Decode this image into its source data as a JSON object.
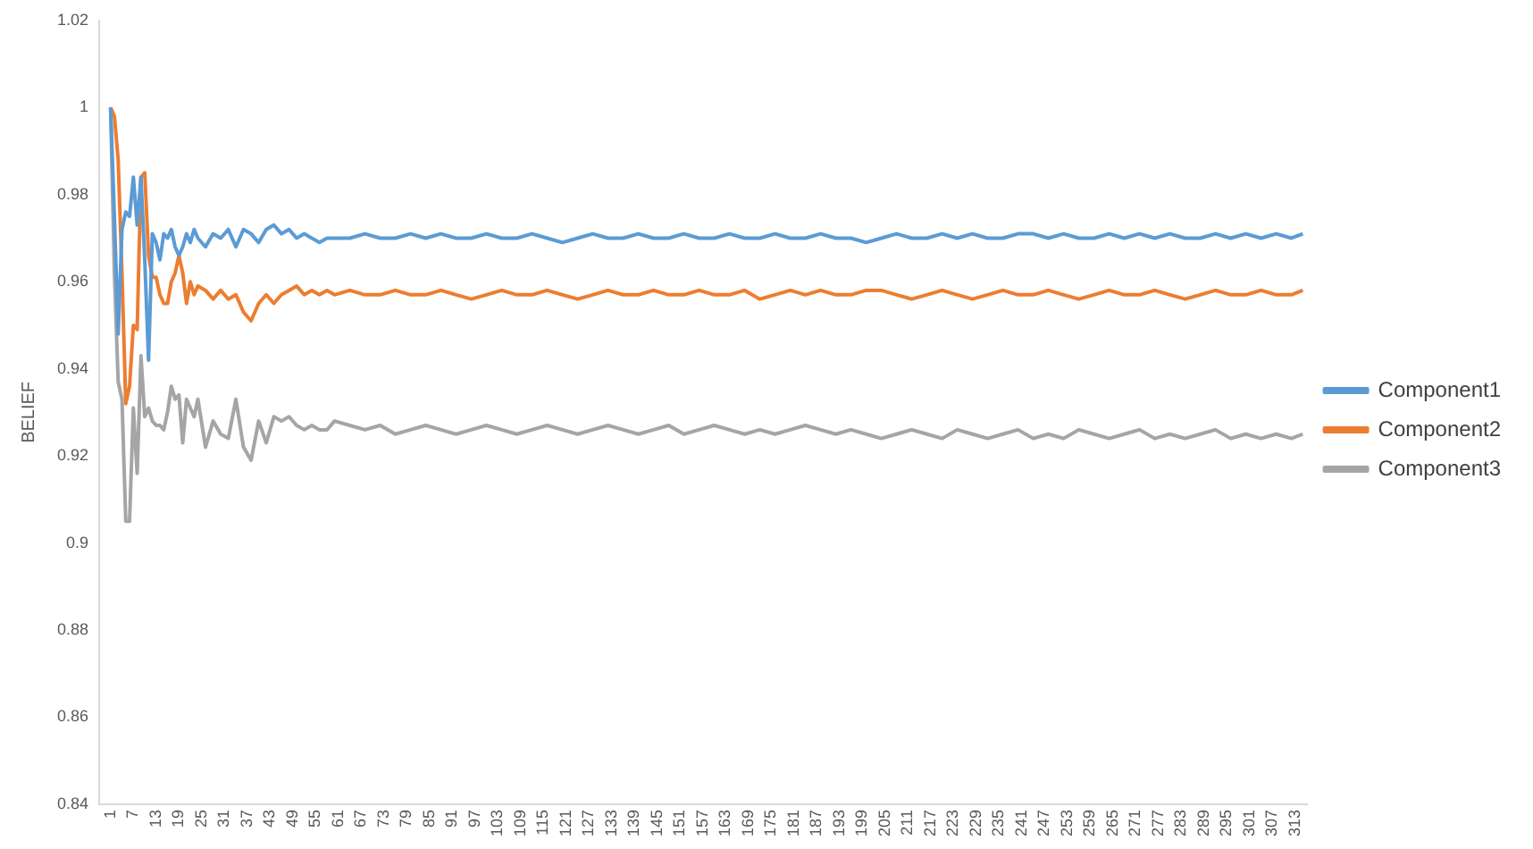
{
  "chart_data": {
    "type": "line",
    "ylabel": "BELIEF",
    "x": [
      1,
      2,
      3,
      4,
      5,
      6,
      7,
      8,
      9,
      10,
      11,
      12,
      13,
      14,
      15,
      16,
      17,
      18,
      19,
      20,
      21,
      22,
      23,
      24,
      26,
      28,
      30,
      32,
      34,
      36,
      38,
      40,
      42,
      44,
      46,
      48,
      50,
      52,
      54,
      56,
      58,
      60,
      64,
      68,
      72,
      76,
      80,
      84,
      88,
      92,
      96,
      100,
      104,
      108,
      112,
      116,
      120,
      124,
      128,
      132,
      136,
      140,
      144,
      148,
      152,
      156,
      160,
      164,
      168,
      172,
      176,
      180,
      184,
      188,
      192,
      196,
      200,
      204,
      208,
      212,
      216,
      220,
      224,
      228,
      232,
      236,
      240,
      244,
      248,
      252,
      256,
      260,
      264,
      268,
      272,
      276,
      280,
      284,
      288,
      292,
      296,
      300,
      304,
      308,
      312,
      315
    ],
    "series": [
      {
        "name": "Component1",
        "color": "#5b9bd5",
        "values": [
          1.0,
          0.975,
          0.948,
          0.972,
          0.976,
          0.975,
          0.984,
          0.973,
          0.984,
          0.965,
          0.942,
          0.971,
          0.969,
          0.965,
          0.971,
          0.97,
          0.972,
          0.968,
          0.966,
          0.968,
          0.971,
          0.969,
          0.972,
          0.97,
          0.968,
          0.971,
          0.97,
          0.972,
          0.968,
          0.972,
          0.971,
          0.969,
          0.972,
          0.973,
          0.971,
          0.972,
          0.97,
          0.971,
          0.97,
          0.969,
          0.97,
          0.97,
          0.97,
          0.971,
          0.97,
          0.97,
          0.971,
          0.97,
          0.971,
          0.97,
          0.97,
          0.971,
          0.97,
          0.97,
          0.971,
          0.97,
          0.969,
          0.97,
          0.971,
          0.97,
          0.97,
          0.971,
          0.97,
          0.97,
          0.971,
          0.97,
          0.97,
          0.971,
          0.97,
          0.97,
          0.971,
          0.97,
          0.97,
          0.971,
          0.97,
          0.97,
          0.969,
          0.97,
          0.971,
          0.97,
          0.97,
          0.971,
          0.97,
          0.971,
          0.97,
          0.97,
          0.971,
          0.971,
          0.97,
          0.971,
          0.97,
          0.97,
          0.971,
          0.97,
          0.971,
          0.97,
          0.971,
          0.97,
          0.97,
          0.971,
          0.97,
          0.971,
          0.97,
          0.971,
          0.97,
          0.971
        ]
      },
      {
        "name": "Component2",
        "color": "#ed7d31",
        "values": [
          1.0,
          0.998,
          0.988,
          0.962,
          0.932,
          0.936,
          0.95,
          0.949,
          0.984,
          0.985,
          0.966,
          0.961,
          0.961,
          0.957,
          0.955,
          0.955,
          0.96,
          0.962,
          0.966,
          0.962,
          0.955,
          0.96,
          0.957,
          0.959,
          0.958,
          0.956,
          0.958,
          0.956,
          0.957,
          0.953,
          0.951,
          0.955,
          0.957,
          0.955,
          0.957,
          0.958,
          0.959,
          0.957,
          0.958,
          0.957,
          0.958,
          0.957,
          0.958,
          0.957,
          0.957,
          0.958,
          0.957,
          0.957,
          0.958,
          0.957,
          0.956,
          0.957,
          0.958,
          0.957,
          0.957,
          0.958,
          0.957,
          0.956,
          0.957,
          0.958,
          0.957,
          0.957,
          0.958,
          0.957,
          0.957,
          0.958,
          0.957,
          0.957,
          0.958,
          0.956,
          0.957,
          0.958,
          0.957,
          0.958,
          0.957,
          0.957,
          0.958,
          0.958,
          0.957,
          0.956,
          0.957,
          0.958,
          0.957,
          0.956,
          0.957,
          0.958,
          0.957,
          0.957,
          0.958,
          0.957,
          0.956,
          0.957,
          0.958,
          0.957,
          0.957,
          0.958,
          0.957,
          0.956,
          0.957,
          0.958,
          0.957,
          0.957,
          0.958,
          0.957,
          0.957,
          0.958
        ]
      },
      {
        "name": "Component3",
        "color": "#a5a5a5",
        "values": [
          1.0,
          0.962,
          0.937,
          0.933,
          0.905,
          0.905,
          0.931,
          0.916,
          0.943,
          0.929,
          0.931,
          0.928,
          0.927,
          0.927,
          0.926,
          0.93,
          0.936,
          0.933,
          0.934,
          0.923,
          0.933,
          0.931,
          0.929,
          0.933,
          0.922,
          0.928,
          0.925,
          0.924,
          0.933,
          0.922,
          0.919,
          0.928,
          0.923,
          0.929,
          0.928,
          0.929,
          0.927,
          0.926,
          0.927,
          0.926,
          0.926,
          0.928,
          0.927,
          0.926,
          0.927,
          0.925,
          0.926,
          0.927,
          0.926,
          0.925,
          0.926,
          0.927,
          0.926,
          0.925,
          0.926,
          0.927,
          0.926,
          0.925,
          0.926,
          0.927,
          0.926,
          0.925,
          0.926,
          0.927,
          0.925,
          0.926,
          0.927,
          0.926,
          0.925,
          0.926,
          0.925,
          0.926,
          0.927,
          0.926,
          0.925,
          0.926,
          0.925,
          0.924,
          0.925,
          0.926,
          0.925,
          0.924,
          0.926,
          0.925,
          0.924,
          0.925,
          0.926,
          0.924,
          0.925,
          0.924,
          0.926,
          0.925,
          0.924,
          0.925,
          0.926,
          0.924,
          0.925,
          0.924,
          0.925,
          0.926,
          0.924,
          0.925,
          0.924,
          0.925,
          0.924,
          0.925
        ]
      }
    ],
    "xlim": [
      -2,
      316
    ],
    "xticks": [
      1,
      7,
      13,
      19,
      25,
      31,
      37,
      43,
      49,
      55,
      61,
      67,
      73,
      79,
      85,
      91,
      97,
      103,
      109,
      115,
      121,
      127,
      133,
      139,
      145,
      151,
      157,
      163,
      169,
      175,
      181,
      187,
      193,
      199,
      205,
      211,
      217,
      223,
      229,
      235,
      241,
      247,
      253,
      259,
      265,
      271,
      277,
      283,
      289,
      295,
      301,
      307,
      313
    ],
    "ylim": [
      0.84,
      1.02
    ],
    "yticks": [
      0.84,
      0.86,
      0.88,
      0.9,
      0.92,
      0.94,
      0.96,
      0.98,
      1,
      1.02
    ],
    "grid": false,
    "legend": "right",
    "marker": "none",
    "line_style": "solid"
  }
}
